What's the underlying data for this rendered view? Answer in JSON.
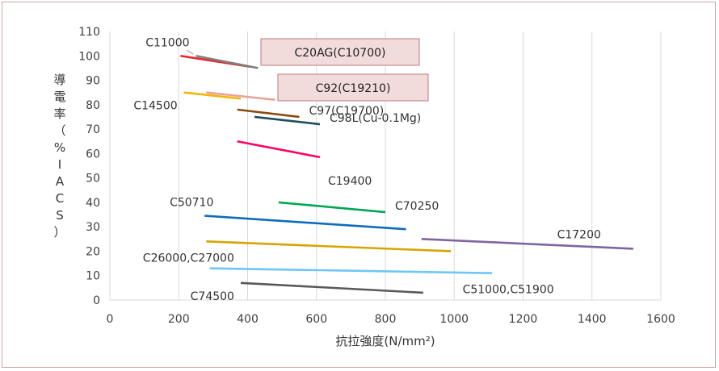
{
  "chart_data": {
    "type": "line",
    "xlabel": "抗拉強度(N/mm²)",
    "ylabel": "導電率（%IACS）",
    "xlim": [
      0,
      1600
    ],
    "ylim": [
      0,
      110
    ],
    "x_ticks": [
      0,
      200,
      400,
      600,
      800,
      1000,
      1200,
      1400,
      1600
    ],
    "y_ticks": [
      0,
      10,
      20,
      30,
      40,
      50,
      60,
      70,
      80,
      90,
      100,
      110
    ],
    "grid": "vertical",
    "series": [
      {
        "name": "C11000",
        "color": "#e8262a",
        "x": [
          205,
          410
        ],
        "y": [
          100,
          95.5
        ],
        "highlight": false,
        "label_pos": "top-left"
      },
      {
        "name": "C20AG(C10700)",
        "color": "#7f7f7f",
        "x": [
          250,
          430
        ],
        "y": [
          100,
          95
        ],
        "highlight": true,
        "label_pos": "right"
      },
      {
        "name": "C92(C19210)",
        "color": "#e6a39a",
        "x": [
          280,
          480
        ],
        "y": [
          85,
          82
        ],
        "highlight": true,
        "label_pos": "right"
      },
      {
        "name": "C14500",
        "color": "#f4b400",
        "x": [
          215,
          380
        ],
        "y": [
          85,
          82.5
        ],
        "highlight": false,
        "label_pos": "left"
      },
      {
        "name": "C97(C19700)",
        "color": "#8a4b0f",
        "x": [
          370,
          550
        ],
        "y": [
          78,
          75
        ],
        "highlight": false,
        "label_pos": "right"
      },
      {
        "name": "C98L(Cu-0.1Mg)",
        "color": "#1f4e5a",
        "x": [
          420,
          610
        ],
        "y": [
          75,
          72
        ],
        "highlight": false,
        "label_pos": "right"
      },
      {
        "name": "C19400",
        "color": "#ff0066",
        "x": [
          370,
          610
        ],
        "y": [
          65,
          58.5
        ],
        "highlight": false,
        "label_pos": "below"
      },
      {
        "name": "C70250",
        "color": "#00a651",
        "x": [
          490,
          800
        ],
        "y": [
          40,
          36
        ],
        "highlight": false,
        "label_pos": "right"
      },
      {
        "name": "C50710",
        "color": "#0f6cbd",
        "x": [
          275,
          860
        ],
        "y": [
          34.5,
          29
        ],
        "highlight": false,
        "label_pos": "top-left"
      },
      {
        "name": "C17200",
        "color": "#8064a2",
        "x": [
          905,
          1520
        ],
        "y": [
          25,
          21
        ],
        "highlight": false,
        "label_pos": "top-right"
      },
      {
        "name": "C26000,C27000",
        "color": "#d6a400",
        "x": [
          280,
          990
        ],
        "y": [
          24,
          20
        ],
        "highlight": false,
        "label_pos": "below-left"
      },
      {
        "name": "C51000,C51900",
        "color": "#6ec6f5",
        "x": [
          290,
          1110
        ],
        "y": [
          13,
          11
        ],
        "highlight": false,
        "label_pos": "below-right"
      },
      {
        "name": "C74500",
        "color": "#595959",
        "x": [
          380,
          910
        ],
        "y": [
          7,
          3
        ],
        "highlight": false,
        "label_pos": "left"
      }
    ]
  }
}
